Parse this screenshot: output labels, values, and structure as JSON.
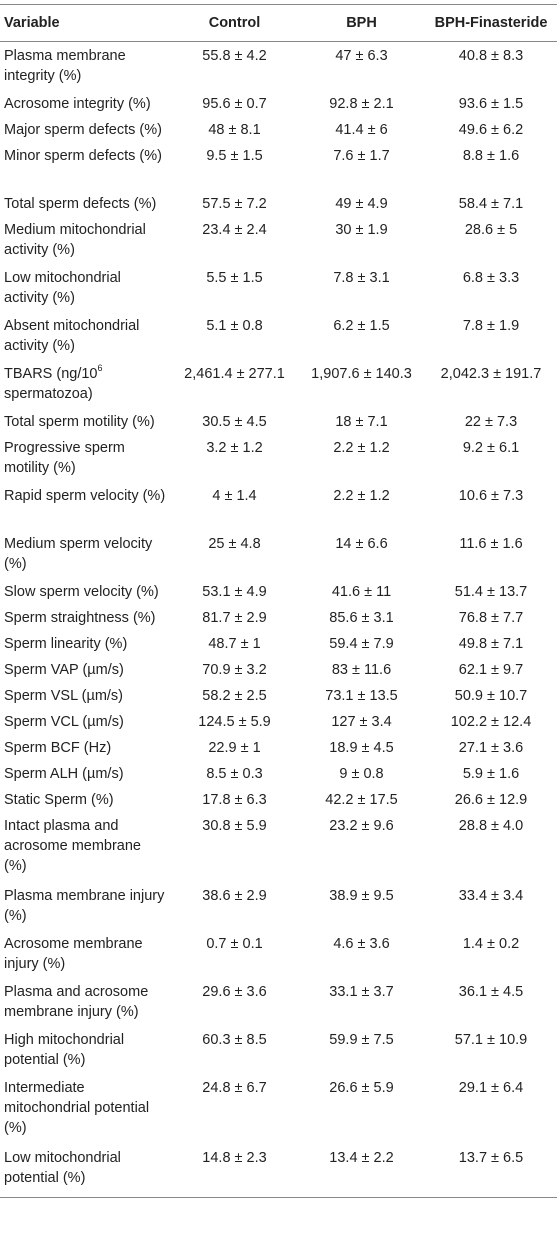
{
  "header": {
    "variable": "Variable",
    "control": "Control",
    "bph": "BPH",
    "bph_finasteride": "BPH-Finasteride"
  },
  "rows": [
    {
      "variable": "Plasma membrane integrity (%)",
      "control": "55.8 ± 4.2",
      "bph": "47 ± 6.3",
      "bph_finasteride": "40.8 ± 8.3"
    },
    {
      "variable": "Acrosome integrity (%)",
      "control": "95.6 ± 0.7",
      "bph": "92.8 ± 2.1",
      "bph_finasteride": "93.6 ± 1.5"
    },
    {
      "variable": "Major sperm defects (%)",
      "control": "48 ± 8.1",
      "bph": "41.4 ± 6",
      "bph_finasteride": "49.6 ± 6.2"
    },
    {
      "variable": "Minor sperm defects (%)",
      "control": "9.5 ± 1.5",
      "bph": "7.6 ± 1.7",
      "bph_finasteride": "8.8 ± 1.6"
    },
    {
      "variable": "Total sperm defects (%)",
      "control": "57.5 ± 7.2",
      "bph": "49 ± 4.9",
      "bph_finasteride": "58.4 ± 7.1"
    },
    {
      "variable": "Medium mitochondrial activity (%)",
      "control": "23.4 ± 2.4",
      "bph": "30 ± 1.9",
      "bph_finasteride": "28.6 ± 5"
    },
    {
      "variable": "Low mitochondrial activity (%)",
      "control": "5.5 ± 1.5",
      "bph": "7.8 ± 3.1",
      "bph_finasteride": "6.8 ± 3.3"
    },
    {
      "variable": "Absent mitochondrial activity (%)",
      "control": "5.1 ± 0.8",
      "bph": "6.2 ± 1.5",
      "bph_finasteride": "7.8 ± 1.9"
    },
    {
      "variable": "TBARS (ng/10",
      "variable_sup": "6",
      "variable_after": " spermatozoa)",
      "control": "2,461.4 ± 277.1",
      "bph": "1,907.6 ± 140.3",
      "bph_finasteride": "2,042.3 ± 191.7"
    },
    {
      "variable": "Total sperm motility (%)",
      "control": "30.5 ± 4.5",
      "bph": "18 ± 7.1",
      "bph_finasteride": "22 ± 7.3"
    },
    {
      "variable": "Progressive sperm motility (%)",
      "control": "3.2 ± 1.2",
      "bph": "2.2 ± 1.2",
      "bph_finasteride": "9.2 ± 6.1"
    },
    {
      "variable": "Rapid sperm velocity (%)",
      "control": "4 ± 1.4",
      "bph": "2.2 ± 1.2",
      "bph_finasteride": "10.6 ± 7.3"
    },
    {
      "variable": "Medium sperm velocity (%)",
      "control": "25 ± 4.8",
      "bph": "14 ± 6.6",
      "bph_finasteride": "11.6 ± 1.6"
    },
    {
      "variable": "Slow sperm velocity (%)",
      "control": "53.1 ± 4.9",
      "bph": "41.6 ± 11",
      "bph_finasteride": "51.4 ± 13.7"
    },
    {
      "variable": "Sperm straightness (%)",
      "control": "81.7 ± 2.9",
      "bph": "85.6 ± 3.1",
      "bph_finasteride": "76.8 ± 7.7"
    },
    {
      "variable": "Sperm linearity (%)",
      "control": "48.7 ± 1",
      "bph": "59.4 ± 7.9",
      "bph_finasteride": "49.8 ± 7.1"
    },
    {
      "variable": "Sperm VAP (µm/s)",
      "control": "70.9 ± 3.2",
      "bph": "83 ± 11.6",
      "bph_finasteride": "62.1 ± 9.7"
    },
    {
      "variable": "Sperm VSL (µm/s)",
      "control": "58.2 ± 2.5",
      "bph": "73.1 ± 13.5",
      "bph_finasteride": "50.9 ± 10.7"
    },
    {
      "variable": "Sperm VCL (µm/s)",
      "control": "124.5 ± 5.9",
      "bph": "127 ± 3.4",
      "bph_finasteride": "102.2 ± 12.4"
    },
    {
      "variable": "Sperm BCF (Hz)",
      "control": "22.9 ± 1",
      "bph": "18.9 ± 4.5",
      "bph_finasteride": "27.1 ± 3.6"
    },
    {
      "variable": "Sperm ALH (µm/s)",
      "control": "8.5 ± 0.3",
      "bph": "9 ± 0.8",
      "bph_finasteride": "5.9 ± 1.6"
    },
    {
      "variable": "Static Sperm (%)",
      "control": "17.8 ± 6.3",
      "bph": "42.2 ± 17.5",
      "bph_finasteride": "26.6 ± 12.9"
    },
    {
      "variable": "Intact plasma and acrosome membrane (%)",
      "control": "30.8 ± 5.9",
      "bph": "23.2 ± 9.6",
      "bph_finasteride": "28.8 ± 4.0"
    },
    {
      "variable": "Plasma membrane injury (%)",
      "control": "38.6 ± 2.9",
      "bph": "38.9 ± 9.5",
      "bph_finasteride": "33.4 ± 3.4"
    },
    {
      "variable": "Acrosome membrane injury (%)",
      "control": "0.7 ± 0.1",
      "bph": "4.6 ± 3.6",
      "bph_finasteride": "1.4 ± 0.2"
    },
    {
      "variable": "Plasma and acrosome membrane injury (%)",
      "control": "29.6 ± 3.6",
      "bph": "33.1 ± 3.7",
      "bph_finasteride": "36.1 ± 4.5"
    },
    {
      "variable": "High mitochondrial potential (%)",
      "control": "60.3 ± 8.5",
      "bph": "59.9 ± 7.5",
      "bph_finasteride": "57.1 ± 10.9"
    },
    {
      "variable": "Intermediate mitochondrial potential (%)",
      "control": "24.8 ± 6.7",
      "bph": "26.6 ± 5.9",
      "bph_finasteride": "29.1 ± 6.4"
    },
    {
      "variable": "Low mitochondrial potential (%)",
      "control": "14.8 ± 2.3",
      "bph": "13.4 ± 2.2",
      "bph_finasteride": "13.7 ± 6.5"
    }
  ]
}
